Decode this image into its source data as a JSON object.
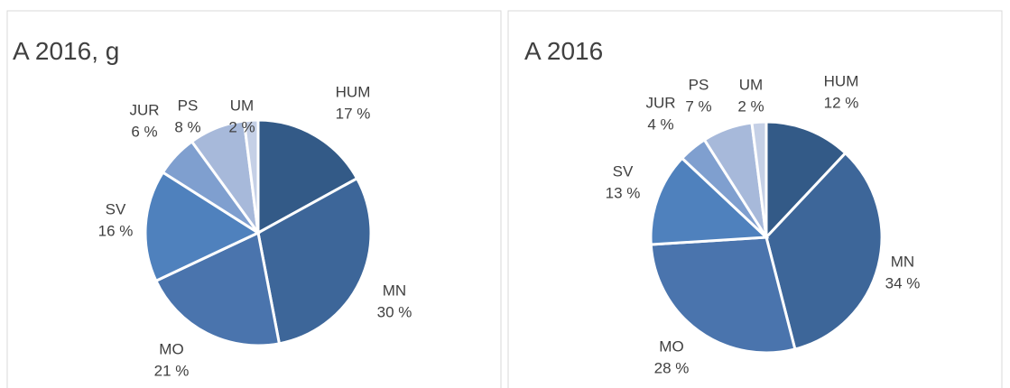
{
  "chart_data": [
    {
      "type": "pie",
      "title": "A 2016, g",
      "categories": [
        "HUM",
        "MN",
        "MO",
        "SV",
        "JUR",
        "PS",
        "UM"
      ],
      "values": [
        17,
        30,
        21,
        16,
        6,
        8,
        2
      ],
      "value_labels": [
        "17 %",
        "30 %",
        "21 %",
        "16 %",
        "6 %",
        "8 %",
        "2 %"
      ],
      "colors": [
        "#335a87",
        "#3d6699",
        "#4a74ad",
        "#4f81bd",
        "#7f9fcf",
        "#a7b9da",
        "#c5d0e6"
      ]
    },
    {
      "type": "pie",
      "title": "A 2016",
      "categories": [
        "HUM",
        "MN",
        "MO",
        "SV",
        "JUR",
        "PS",
        "UM"
      ],
      "values": [
        12,
        34,
        28,
        13,
        4,
        7,
        2
      ],
      "value_labels": [
        "12 %",
        "34 %",
        "28 %",
        "13 %",
        "4 %",
        "7 %",
        "2 %"
      ],
      "colors": [
        "#335a87",
        "#3d6699",
        "#4a74ad",
        "#4f81bd",
        "#7f9fcf",
        "#a7b9da",
        "#c5d0e6"
      ]
    }
  ]
}
